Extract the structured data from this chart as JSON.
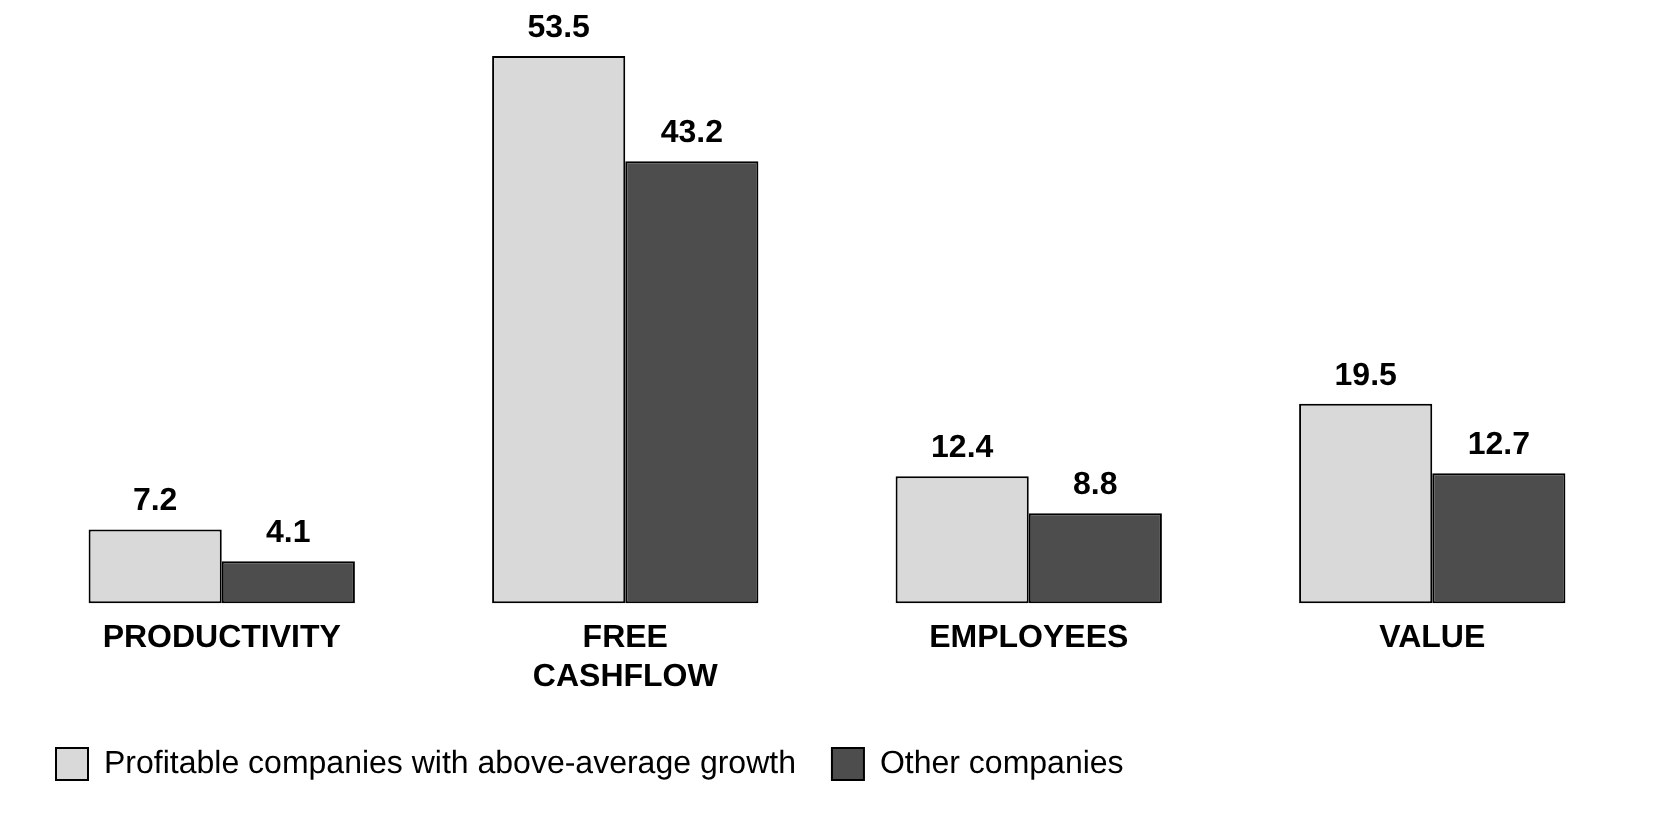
{
  "chart_data": {
    "type": "bar",
    "categories": [
      "PRODUCTIVITY",
      "FREE CASHFLOW",
      "EMPLOYEES",
      "VALUE"
    ],
    "series": [
      {
        "name": "Profitable companies with above-average growth",
        "color": "#d9d9d9",
        "values": [
          7.2,
          53.5,
          12.4,
          19.5
        ]
      },
      {
        "name": "Other companies",
        "color": "#4d4d4d",
        "values": [
          4.1,
          43.2,
          8.8,
          12.7
        ]
      }
    ],
    "data_labels": true,
    "legend": "bottom left",
    "grid": false
  }
}
